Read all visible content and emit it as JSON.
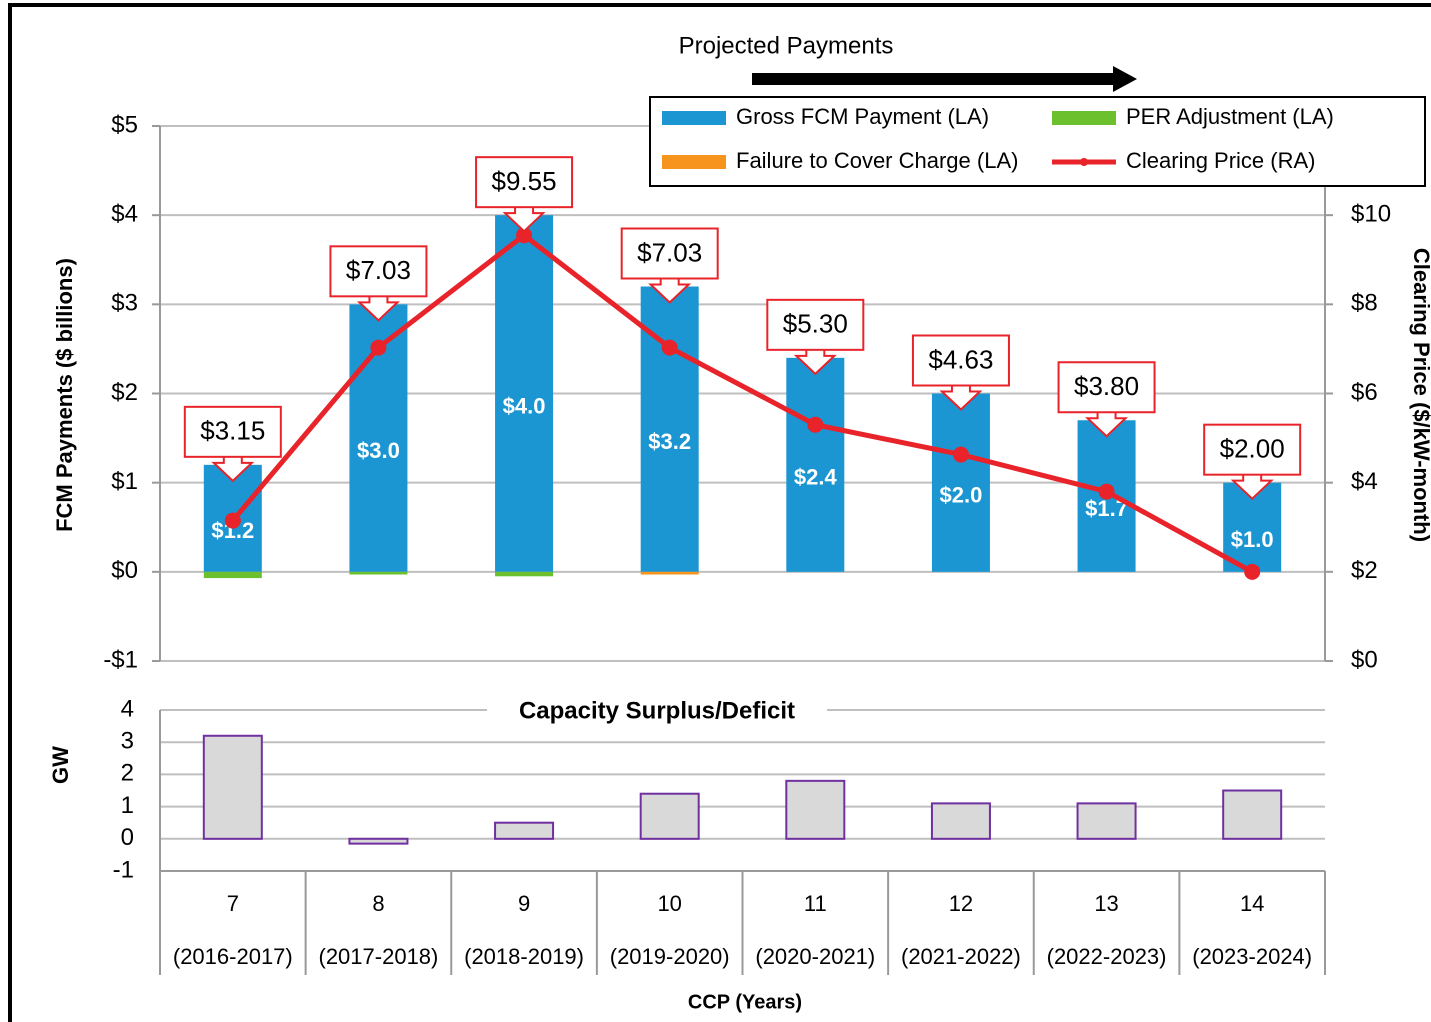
{
  "chart_data": [
    {
      "type": "bar",
      "annotation": "Projected Payments",
      "ylabel": "FCM Payments ($ billions)",
      "y2label": "Clearing Price ($/kW-month)",
      "ylim": [
        -1,
        5
      ],
      "yticks": [
        {
          "value": 5,
          "label": "$5"
        },
        {
          "value": 4,
          "label": "$4"
        },
        {
          "value": 3,
          "label": "$3"
        },
        {
          "value": 2,
          "label": "$2"
        },
        {
          "value": 1,
          "label": "$1"
        },
        {
          "value": 0,
          "label": "$0"
        },
        {
          "value": -1,
          "label": "-$1"
        }
      ],
      "y2lim": [
        0,
        12
      ],
      "y2ticks": [
        {
          "value": 10,
          "label": "$10"
        },
        {
          "value": 8,
          "label": "$8"
        },
        {
          "value": 6,
          "label": "$6"
        },
        {
          "value": 4,
          "label": "$4"
        },
        {
          "value": 2,
          "label": "$2"
        },
        {
          "value": 0,
          "label": "$0"
        }
      ],
      "grid": true,
      "legend": "top-right",
      "series": [
        {
          "name": "Gross FCM Payment (LA)",
          "color": "#1b96d2",
          "values": [
            1.2,
            3.0,
            4.0,
            3.2,
            2.4,
            2.0,
            1.7,
            1.0
          ],
          "value_labels": [
            "$1.2",
            "$3.0",
            "$4.0",
            "$3.2",
            "$2.4",
            "$2.0",
            "$1.7",
            "$1.0"
          ]
        },
        {
          "name": "PER Adjustment (LA)",
          "color": "#6cbf2d",
          "values": [
            -0.07,
            -0.03,
            -0.05,
            0,
            0,
            0,
            0,
            0
          ]
        },
        {
          "name": "Failure to Cover Charge (LA)",
          "color": "#f7941d",
          "values": [
            0,
            0,
            0,
            -0.03,
            0,
            0,
            0,
            0
          ]
        },
        {
          "name": "Clearing Price (RA)",
          "color": "#e8232a",
          "type": "line",
          "axis": "y2",
          "values": [
            3.15,
            7.03,
            9.55,
            7.03,
            5.3,
            4.63,
            3.8,
            2.0
          ],
          "value_labels": [
            "$3.15",
            "$7.03",
            "$9.55",
            "$7.03",
            "$5.30",
            "$4.63",
            "$3.80",
            "$2.00"
          ]
        }
      ]
    },
    {
      "type": "bar",
      "title": "Capacity Surplus/Deficit",
      "ylabel": "GW",
      "xlabel": "CCP (Years)",
      "categories": [
        "7",
        "8",
        "9",
        "10",
        "11",
        "12",
        "13",
        "14"
      ],
      "subcategories": [
        "(2016-2017)",
        "(2017-2018)",
        "(2018-2019)",
        "(2019-2020)",
        "(2020-2021)",
        "(2021-2022)",
        "(2022-2023)",
        "(2023-2024)"
      ],
      "ylim": [
        -1,
        4
      ],
      "yticks": [
        4,
        3,
        2,
        1,
        0,
        -1
      ],
      "grid": true,
      "color": "#d9d9d9",
      "edge_color": "#7030a0",
      "values": [
        3.2,
        -0.15,
        0.5,
        1.4,
        1.8,
        1.1,
        1.1,
        1.5
      ]
    }
  ]
}
